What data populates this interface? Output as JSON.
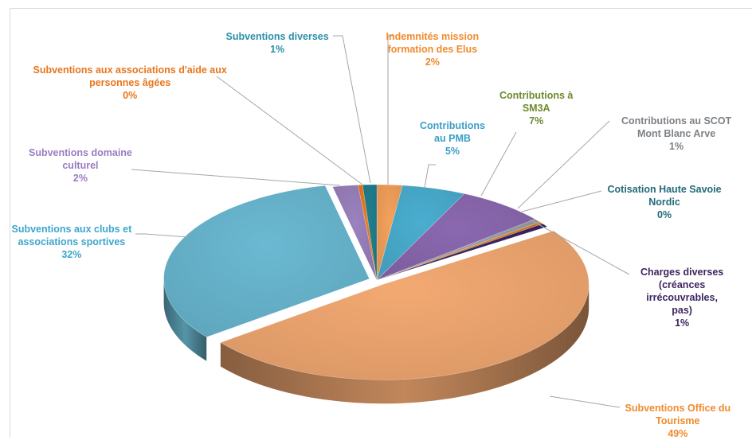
{
  "chart_data": {
    "type": "pie",
    "title": "",
    "slices": [
      {
        "label_lines": [
          "Indemnités mission",
          "formation des Elus"
        ],
        "pct": "2%",
        "value": 2,
        "color": "#f5a15b",
        "label_color": "#f08a2c"
      },
      {
        "label_lines": [
          "Contributions",
          "au PMB"
        ],
        "pct": "5%",
        "value": 5,
        "color": "#4aaed0",
        "label_color": "#3a9fc6"
      },
      {
        "label_lines": [
          "Contributions à",
          "SM3A"
        ],
        "pct": "7%",
        "value": 7,
        "color": "#8b68b0",
        "label_color": "#6e8a2d"
      },
      {
        "label_lines": [
          "Contributions au SCOT",
          "Mont Blanc Arve"
        ],
        "pct": "1%",
        "value": 0.6,
        "color": "#9aa0a6",
        "label_color": "#7d8186"
      },
      {
        "label_lines": [
          "Cotisation Haute Savoie",
          "Nordic"
        ],
        "pct": "0%",
        "value": 0.35,
        "color": "#e07b20",
        "label_color": "#226a79"
      },
      {
        "label_lines": [
          "Charges diverses",
          "(créances",
          "irrécouvrables,",
          "pas)"
        ],
        "pct": "1%",
        "value": 0.6,
        "color": "#3a2460",
        "label_color": "#3d2660"
      },
      {
        "label_lines": [
          "Subventions Office du",
          "Tourisme"
        ],
        "pct": "49%",
        "value": 49,
        "color": "#f3a972",
        "label_color": "#f08a2c"
      },
      {
        "label_lines": [
          "Subventions aux clubs et",
          "associations sportives"
        ],
        "pct": "32%",
        "value": 32,
        "color": "#6ab9d2",
        "label_color": "#3ea6cc"
      },
      {
        "label_lines": [
          "Subventions domaine",
          "culturel"
        ],
        "pct": "2%",
        "value": 2,
        "color": "#9a82bd",
        "label_color": "#9a7cc2"
      },
      {
        "label_lines": [
          "Subventions aux associations d'aide aux",
          "personnes âgées"
        ],
        "pct": "0%",
        "value": 0.35,
        "color": "#ef7a1c",
        "label_color": "#e8761c"
      },
      {
        "label_lines": [
          "Subventions diverses"
        ],
        "pct": "1%",
        "value": 1.1,
        "color": "#1f7f8f",
        "label_color": "#2a8fa8"
      }
    ]
  }
}
